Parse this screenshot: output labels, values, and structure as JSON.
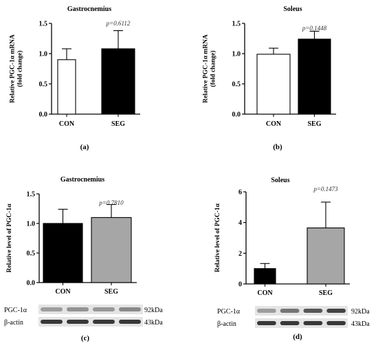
{
  "chart_data": [
    {
      "id": "a",
      "type": "bar",
      "title": "Gastrocnemius",
      "ylabel_lines": [
        "Relative PGC-1α mRNA",
        "(fold change)"
      ],
      "categories": [
        "CON",
        "SEG"
      ],
      "values": [
        0.9,
        1.08
      ],
      "errors": [
        0.18,
        0.3
      ],
      "fills": [
        "#ffffff",
        "#000000"
      ],
      "ylim": [
        0,
        1.5
      ],
      "yticks": [
        0.0,
        0.5,
        1.0,
        1.5
      ],
      "ytick_labels": [
        "0.0",
        "0.5",
        "1.0",
        "1.5"
      ],
      "pvalue": "p=0.6112",
      "panel_label": "(a)"
    },
    {
      "id": "b",
      "type": "bar",
      "title": "Soleus",
      "ylabel_lines": [
        "Relative PGC-1α mRNA",
        "(fold change)"
      ],
      "categories": [
        "CON",
        "SEG"
      ],
      "values": [
        0.99,
        1.24
      ],
      "errors": [
        0.1,
        0.13
      ],
      "fills": [
        "#ffffff",
        "#000000"
      ],
      "ylim": [
        0,
        1.5
      ],
      "yticks": [
        0.0,
        0.5,
        1.0,
        1.5
      ],
      "ytick_labels": [
        "0.0",
        "0.5",
        "1.0",
        "1.5"
      ],
      "pvalue": "p=0.1448",
      "panel_label": "(b)"
    },
    {
      "id": "c",
      "type": "bar",
      "title": "Gastrocnemius",
      "ylabel_lines": [
        "Relative level of PGC-1α"
      ],
      "categories": [
        "CON",
        "SEG"
      ],
      "values": [
        1.0,
        1.1
      ],
      "errors": [
        0.24,
        0.22
      ],
      "fills": [
        "#000000",
        "#a6a6a6"
      ],
      "ylim": [
        0,
        1.5
      ],
      "yticks": [
        0.0,
        0.5,
        1.0,
        1.5
      ],
      "ytick_labels": [
        "0.0",
        "0.5",
        "1.0",
        "1.5"
      ],
      "pvalue": "p=0.7810",
      "panel_label": "(c)",
      "blot": {
        "rows": [
          {
            "label": "PGC-1α",
            "size": "92kDa"
          },
          {
            "label": "β-actin",
            "size": "43kDa"
          }
        ]
      }
    },
    {
      "id": "d",
      "type": "bar",
      "title": "Soleus",
      "ylabel_lines": [
        "Relative level of PGC-1α"
      ],
      "categories": [
        "CON",
        "SEG"
      ],
      "values": [
        1.0,
        3.65
      ],
      "errors": [
        0.33,
        1.68
      ],
      "fills": [
        "#000000",
        "#a6a6a6"
      ],
      "ylim": [
        0,
        6
      ],
      "yticks": [
        0,
        2,
        4,
        6
      ],
      "ytick_labels": [
        "0",
        "2",
        "4",
        "6"
      ],
      "pvalue": "p=0.1473",
      "panel_label": "(d)",
      "blot": {
        "rows": [
          {
            "label": "PGC-1α",
            "size": "92kDa"
          },
          {
            "label": "β-actin",
            "size": "43kDa"
          }
        ]
      }
    }
  ]
}
